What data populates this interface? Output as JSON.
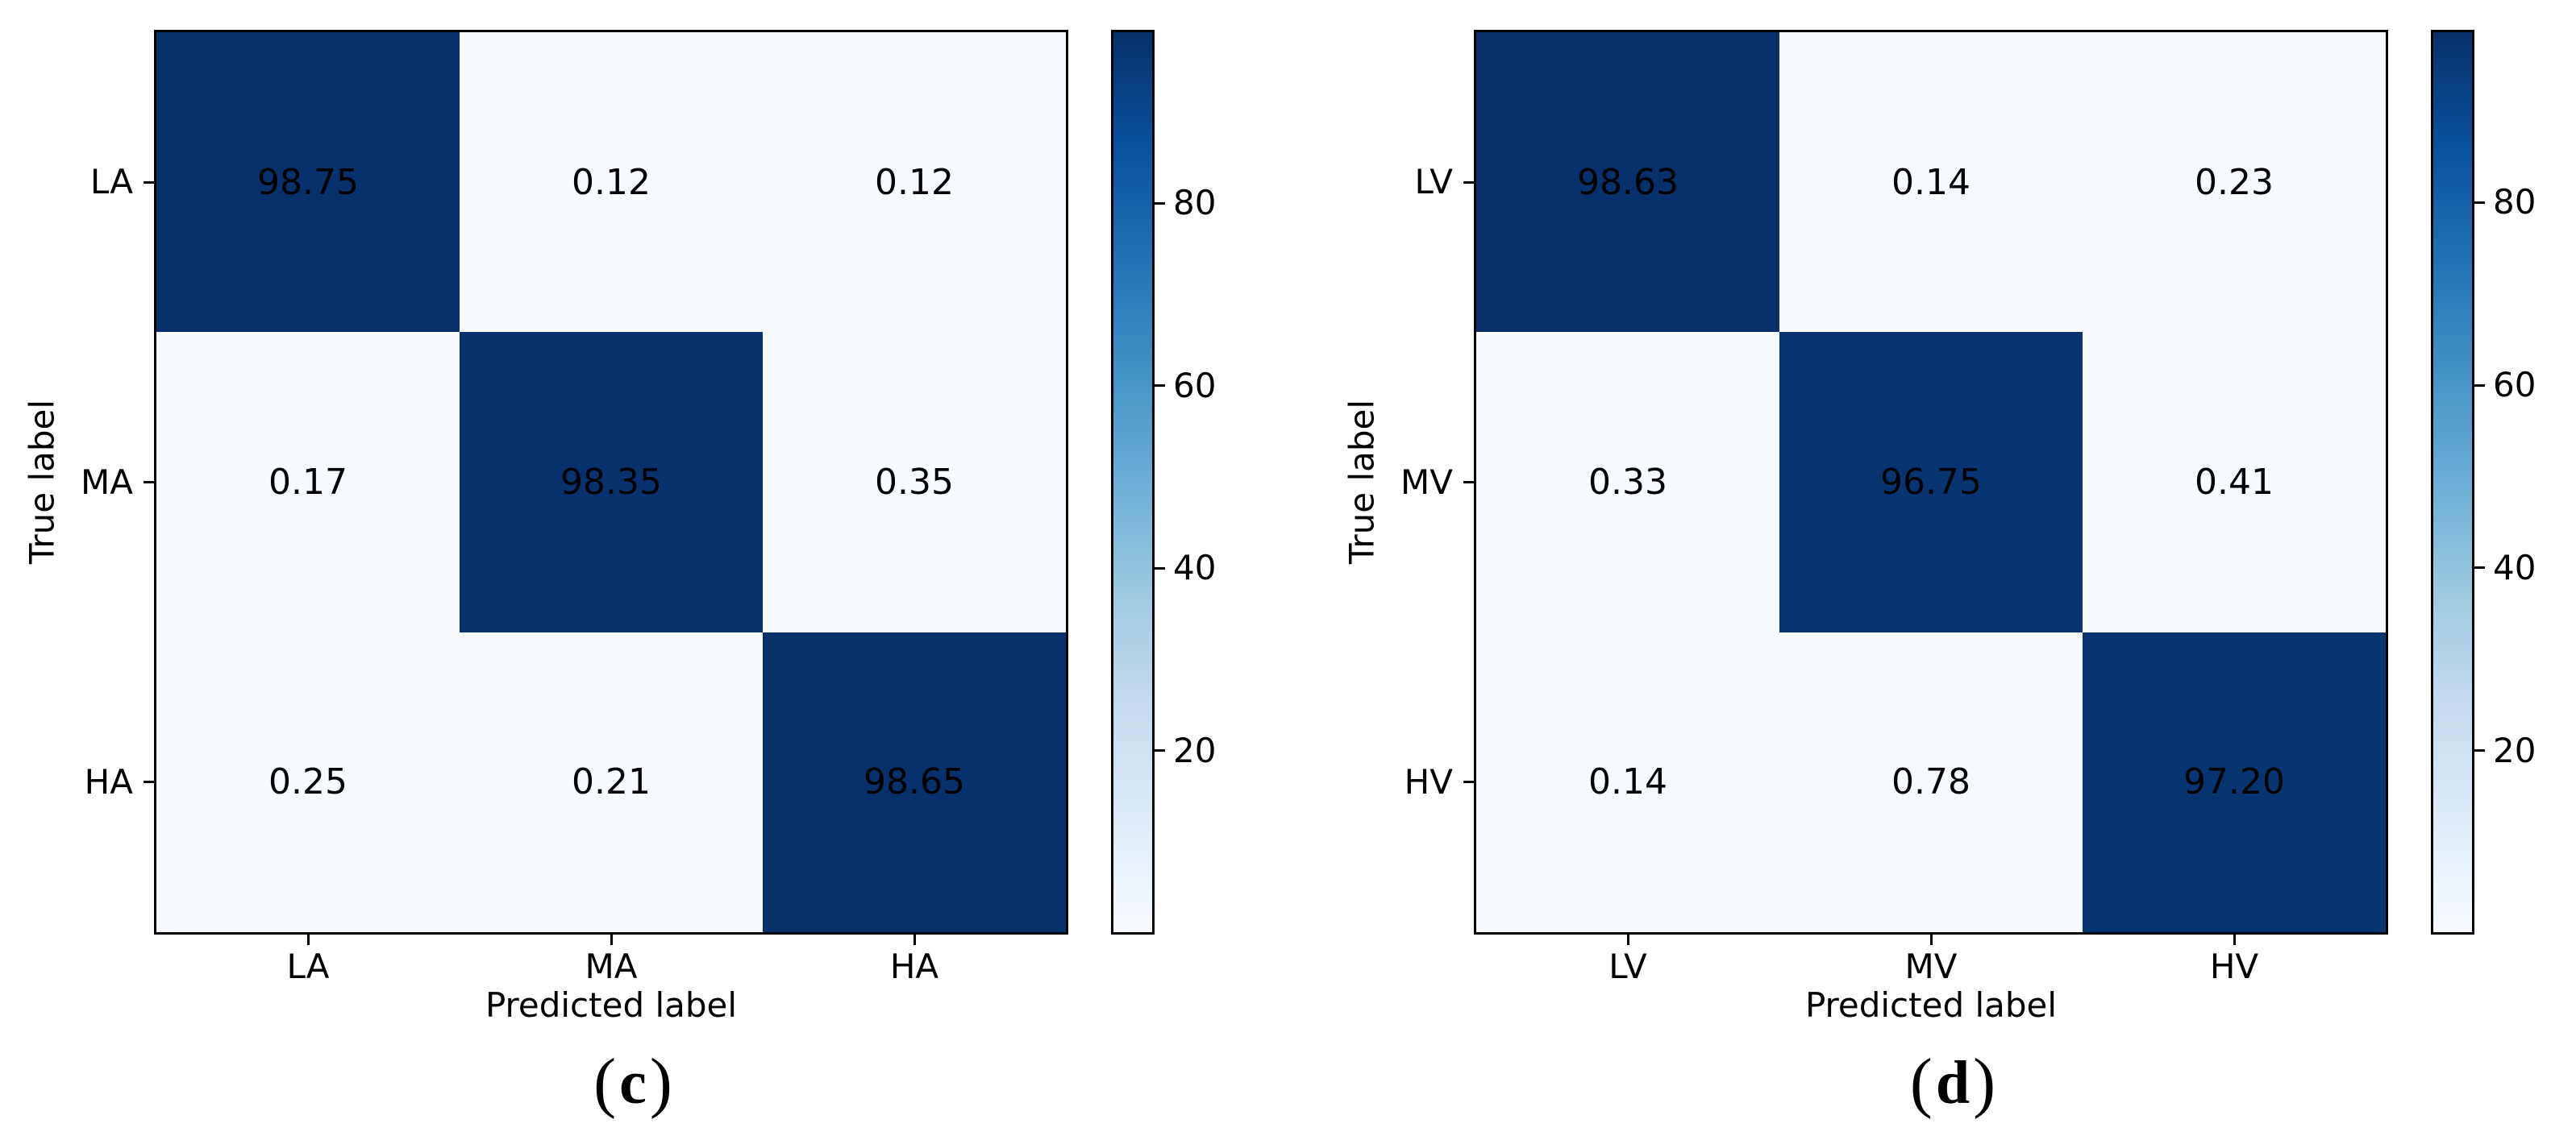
{
  "page": {
    "background": "#ffffff"
  },
  "colors": {
    "colormap": "Blues",
    "stops": [
      [
        0.0,
        "#f7fbff"
      ],
      [
        0.125,
        "#deebf7"
      ],
      [
        0.25,
        "#c6dbef"
      ],
      [
        0.375,
        "#9ecae1"
      ],
      [
        0.5,
        "#6baed6"
      ],
      [
        0.625,
        "#4292c6"
      ],
      [
        0.75,
        "#2171b5"
      ],
      [
        0.875,
        "#08519c"
      ],
      [
        1.0,
        "#08306b"
      ]
    ],
    "cell_text": "#000000",
    "axis": "#000000"
  },
  "chart_data": [
    {
      "type": "heatmap",
      "panel": "(c)",
      "xlabel": "Predicted label",
      "ylabel": "True label",
      "x_tick_labels": [
        "LA",
        "MA",
        "HA"
      ],
      "y_tick_labels": [
        "LA",
        "MA",
        "HA"
      ],
      "values": [
        [
          98.75,
          0.12,
          0.12
        ],
        [
          0.17,
          98.35,
          0.35
        ],
        [
          0.25,
          0.21,
          98.65
        ]
      ],
      "value_labels": [
        [
          "98.75",
          "0.12",
          "0.12"
        ],
        [
          "0.17",
          "98.35",
          "0.35"
        ],
        [
          "0.25",
          "0.21",
          "98.65"
        ]
      ],
      "colorbar_tick_values": [
        80,
        60,
        40,
        20
      ],
      "colorbar_tick_labels": [
        "80",
        "60",
        "40",
        "20"
      ],
      "legend_position": "right-colorbar",
      "grid": false
    },
    {
      "type": "heatmap",
      "panel": "(d)",
      "xlabel": "Predicted label",
      "ylabel": "True label",
      "x_tick_labels": [
        "LV",
        "MV",
        "HV"
      ],
      "y_tick_labels": [
        "LV",
        "MV",
        "HV"
      ],
      "values": [
        [
          98.63,
          0.14,
          0.23
        ],
        [
          0.33,
          96.75,
          0.41
        ],
        [
          0.14,
          0.78,
          97.2
        ]
      ],
      "value_labels": [
        [
          "98.63",
          "0.14",
          "0.23"
        ],
        [
          "0.33",
          "96.75",
          "0.41"
        ],
        [
          "0.14",
          "0.78",
          "97.20"
        ]
      ],
      "colorbar_tick_values": [
        80,
        60,
        40,
        20
      ],
      "colorbar_tick_labels": [
        "80",
        "60",
        "40",
        "20"
      ],
      "legend_position": "right-colorbar",
      "grid": false
    }
  ]
}
